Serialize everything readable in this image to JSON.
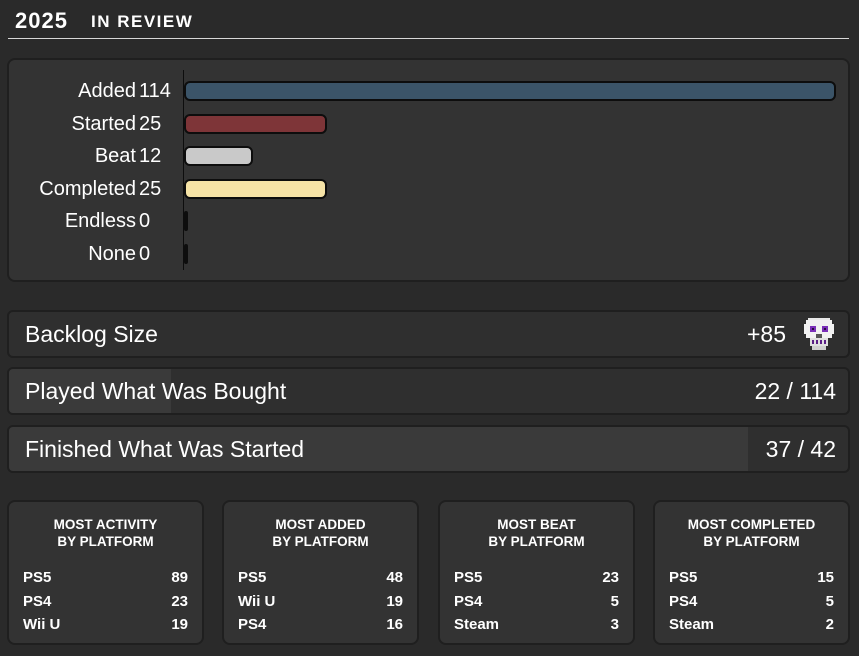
{
  "header": {
    "year": "2025",
    "subtitle": "IN REVIEW"
  },
  "chart_data": {
    "type": "bar",
    "orientation": "horizontal",
    "categories": [
      "Added",
      "Started",
      "Beat",
      "Completed",
      "Endless",
      "None"
    ],
    "values": [
      114,
      25,
      12,
      25,
      0,
      0
    ],
    "colors": [
      "#3b5468",
      "#7e3538",
      "#c9c9c9",
      "#f6e3a6",
      "#1a1a1a",
      "#1a1a1a"
    ],
    "xlim": [
      0,
      114
    ],
    "grid": false
  },
  "stats": [
    {
      "label": "Backlog Size",
      "value": "+85",
      "fill": 0,
      "icon": "skull-icon"
    },
    {
      "label": "Played What Was Bought",
      "value": "22 / 114",
      "fill": 0.193
    },
    {
      "label": "Finished What Was Started",
      "value": "37 / 42",
      "fill": 0.881
    }
  ],
  "cards": [
    {
      "title_line1": "MOST ACTIVITY",
      "title_line2": "BY PLATFORM",
      "rows": [
        {
          "name": "PS5",
          "value": "89"
        },
        {
          "name": "PS4",
          "value": "23"
        },
        {
          "name": "Wii U",
          "value": "19"
        }
      ]
    },
    {
      "title_line1": "MOST ADDED",
      "title_line2": "BY PLATFORM",
      "rows": [
        {
          "name": "PS5",
          "value": "48"
        },
        {
          "name": "Wii U",
          "value": "19"
        },
        {
          "name": "PS4",
          "value": "16"
        }
      ]
    },
    {
      "title_line1": "MOST BEAT",
      "title_line2": "BY PLATFORM",
      "rows": [
        {
          "name": "PS5",
          "value": "23"
        },
        {
          "name": "PS4",
          "value": "5"
        },
        {
          "name": "Steam",
          "value": "3"
        }
      ]
    },
    {
      "title_line1": "MOST COMPLETED",
      "title_line2": "BY PLATFORM",
      "rows": [
        {
          "name": "PS5",
          "value": "15"
        },
        {
          "name": "PS4",
          "value": "5"
        },
        {
          "name": "Steam",
          "value": "2"
        }
      ]
    }
  ]
}
